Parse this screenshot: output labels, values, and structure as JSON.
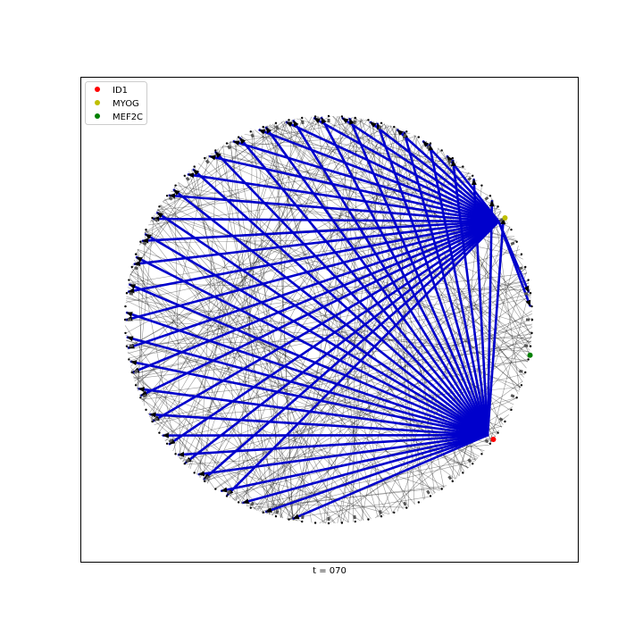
{
  "caption": "t = 070",
  "legend": {
    "placement": "top-left",
    "entries": [
      {
        "label": "ID1",
        "color": "#ff0000"
      },
      {
        "label": "MYOG",
        "color": "#bfbf00"
      },
      {
        "label": "MEF2C",
        "color": "#008000"
      }
    ]
  },
  "colors": {
    "background_edges": "#000000",
    "highlight_edges": "#0000cc",
    "nodes": "#000000"
  },
  "network": {
    "layout": "circular",
    "node_count": 96,
    "hubs": [
      {
        "name": "MYOG",
        "angle_deg": -30,
        "color": "#bfbf00"
      },
      {
        "name": "ID1",
        "angle_deg": 36,
        "color": "#ff0000"
      },
      {
        "name": "MEF2C",
        "angle_deg": 10,
        "color": "#008000"
      }
    ],
    "hub_targets": {
      "MYOG": [
        120,
        128,
        135,
        142,
        150,
        158,
        165,
        172,
        180,
        188,
        196,
        203,
        210,
        218,
        226,
        234,
        242,
        250,
        258,
        266,
        274,
        282,
        290,
        298,
        306,
        352,
        356
      ],
      "ID1": [
        100,
        108,
        115,
        122,
        130,
        138,
        145,
        152,
        160,
        168,
        175,
        182,
        190,
        198,
        205,
        212,
        220,
        228,
        236,
        244,
        252,
        260,
        268,
        276,
        284,
        292,
        300,
        308,
        316,
        324,
        330
      ]
    },
    "background_edge_count": 260
  }
}
